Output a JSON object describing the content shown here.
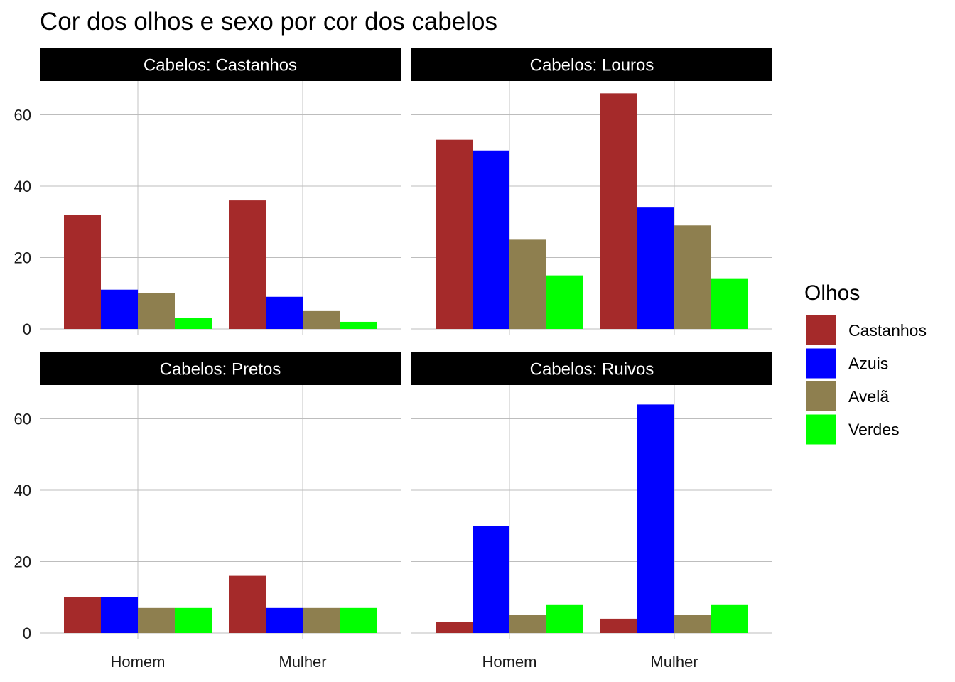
{
  "chart_data": {
    "type": "bar",
    "title": "Cor dos olhos e sexo por cor dos cabelos",
    "xlabel": "",
    "ylabel": "",
    "categories": [
      "Homem",
      "Mulher"
    ],
    "ylim": [
      0,
      70
    ],
    "yticks": [
      0,
      20,
      40,
      60
    ],
    "grid": true,
    "legend": {
      "title": "Olhos",
      "placement": "right",
      "items": [
        {
          "name": "Castanhos",
          "color": "#A52A2A"
        },
        {
          "name": "Azuis",
          "color": "#0000FF"
        },
        {
          "name": "Avelã",
          "color": "#8E7F4F"
        },
        {
          "name": "Verdes",
          "color": "#00FF00"
        }
      ]
    },
    "panels": [
      {
        "strip": "Cabelos: Castanhos",
        "series": [
          {
            "name": "Castanhos",
            "values": [
              32,
              36
            ]
          },
          {
            "name": "Azuis",
            "values": [
              11,
              9
            ]
          },
          {
            "name": "Avelã",
            "values": [
              10,
              5
            ]
          },
          {
            "name": "Verdes",
            "values": [
              3,
              2
            ]
          }
        ]
      },
      {
        "strip": "Cabelos: Louros",
        "series": [
          {
            "name": "Castanhos",
            "values": [
              53,
              66
            ]
          },
          {
            "name": "Azuis",
            "values": [
              50,
              34
            ]
          },
          {
            "name": "Avelã",
            "values": [
              25,
              29
            ]
          },
          {
            "name": "Verdes",
            "values": [
              15,
              14
            ]
          }
        ]
      },
      {
        "strip": "Cabelos: Pretos",
        "series": [
          {
            "name": "Castanhos",
            "values": [
              10,
              16
            ]
          },
          {
            "name": "Azuis",
            "values": [
              10,
              7
            ]
          },
          {
            "name": "Avelã",
            "values": [
              7,
              7
            ]
          },
          {
            "name": "Verdes",
            "values": [
              7,
              7
            ]
          }
        ]
      },
      {
        "strip": "Cabelos: Ruivos",
        "series": [
          {
            "name": "Castanhos",
            "values": [
              3,
              4
            ]
          },
          {
            "name": "Azuis",
            "values": [
              30,
              64
            ]
          },
          {
            "name": "Avelã",
            "values": [
              5,
              5
            ]
          },
          {
            "name": "Verdes",
            "values": [
              8,
              8
            ]
          }
        ]
      }
    ]
  }
}
